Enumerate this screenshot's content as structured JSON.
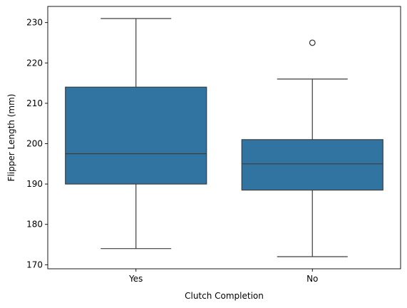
{
  "chart_data": {
    "type": "boxplot",
    "title": "",
    "xlabel": "Clutch Completion",
    "ylabel": "Flipper Length (mm)",
    "ylim": [
      169,
      234
    ],
    "yticks": [
      170,
      180,
      190,
      200,
      210,
      220,
      230
    ],
    "grid": false,
    "color": "#3274a1",
    "edge_color": "#3d3d3d",
    "categories": [
      "Yes",
      "No"
    ],
    "boxes": [
      {
        "category": "Yes",
        "whisker_low": 174,
        "q1": 190,
        "median": 197.5,
        "q3": 214,
        "whisker_high": 231,
        "outliers": []
      },
      {
        "category": "No",
        "whisker_low": 172,
        "q1": 188.5,
        "median": 195,
        "q3": 201,
        "whisker_high": 216,
        "outliers": [
          225
        ]
      }
    ]
  }
}
